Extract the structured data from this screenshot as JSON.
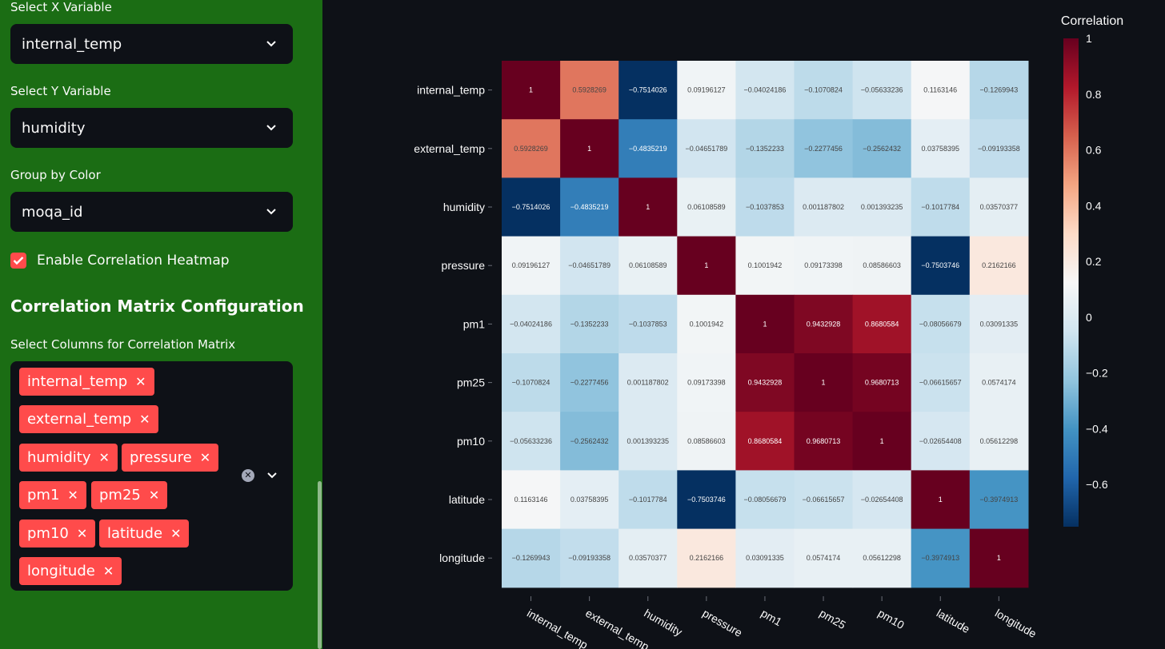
{
  "sidebar": {
    "x_label": "Select X Variable",
    "x_value": "internal_temp",
    "y_label": "Select Y Variable",
    "y_value": "humidity",
    "color_label": "Group by Color",
    "color_value": "moqa_id",
    "heatmap_checkbox_label": "Enable Correlation Heatmap",
    "heatmap_checked": true,
    "section_title": "Correlation Matrix Configuration",
    "columns_label": "Select Columns for Correlation Matrix",
    "selected_columns": [
      "internal_temp",
      "external_temp",
      "humidity",
      "pressure",
      "pm1",
      "pm25",
      "pm10",
      "latitude",
      "longitude"
    ],
    "accent_color": "#ff4b4b",
    "sidebar_bg": "#1b6d14"
  },
  "chart_data": {
    "type": "heatmap",
    "title": "",
    "colorbar_title": "Correlation",
    "colorscale": "RdBu (reversed)",
    "zrange": [
      -0.7514026,
      1
    ],
    "colorbar_ticks": [
      "1",
      "0.8",
      "0.6",
      "0.4",
      "0.2",
      "0",
      "−0.2",
      "−0.4",
      "−0.6"
    ],
    "colorbar_tick_values": [
      1,
      0.8,
      0.6,
      0.4,
      0.2,
      0,
      -0.2,
      -0.4,
      -0.6
    ],
    "x": [
      "internal_temp",
      "external_temp",
      "humidity",
      "pressure",
      "pm1",
      "pm25",
      "pm10",
      "latitude",
      "longitude"
    ],
    "y": [
      "internal_temp",
      "external_temp",
      "humidity",
      "pressure",
      "pm1",
      "pm25",
      "pm10",
      "latitude",
      "longitude"
    ],
    "z": [
      [
        1,
        0.5928269,
        -0.7514026,
        0.09196127,
        -0.04024186,
        -0.1070824,
        -0.05633236,
        0.1163146,
        -0.1269943
      ],
      [
        0.5928269,
        1,
        -0.4835219,
        -0.04651789,
        -0.1352233,
        -0.2277456,
        -0.2562432,
        0.03758395,
        -0.09193358
      ],
      [
        -0.7514026,
        -0.4835219,
        1,
        0.06108589,
        -0.1037853,
        0.001187802,
        0.001393235,
        -0.1017784,
        0.03570377
      ],
      [
        0.09196127,
        -0.04651789,
        0.06108589,
        1,
        0.1001942,
        0.09173398,
        0.08586603,
        -0.7503746,
        0.2162166
      ],
      [
        -0.04024186,
        -0.1352233,
        -0.1037853,
        0.1001942,
        1,
        0.9432928,
        0.8680584,
        -0.08056679,
        0.03091335
      ],
      [
        -0.1070824,
        -0.2277456,
        0.001187802,
        0.09173398,
        0.9432928,
        1,
        0.9680713,
        -0.06615657,
        0.0574174
      ],
      [
        -0.05633236,
        -0.2562432,
        0.001393235,
        0.08586603,
        0.8680584,
        0.9680713,
        1,
        -0.02654408,
        0.05612298
      ],
      [
        0.1163146,
        0.03758395,
        -0.1017784,
        -0.7503746,
        -0.08056679,
        -0.06615657,
        -0.02654408,
        1,
        -0.3974913
      ],
      [
        -0.1269943,
        -0.09193358,
        0.03570377,
        0.2162166,
        0.03091335,
        0.0574174,
        0.05612298,
        -0.3974913,
        1
      ]
    ],
    "z_text": [
      [
        "1",
        "0.5928269",
        "−0.7514026",
        "0.09196127",
        "−0.04024186",
        "−0.1070824",
        "−0.05633236",
        "0.1163146",
        "−0.1269943"
      ],
      [
        "0.5928269",
        "1",
        "−0.4835219",
        "−0.04651789",
        "−0.1352233",
        "−0.2277456",
        "−0.2562432",
        "0.03758395",
        "−0.09193358"
      ],
      [
        "−0.7514026",
        "−0.4835219",
        "1",
        "0.06108589",
        "−0.1037853",
        "0.001187802",
        "0.001393235",
        "−0.1017784",
        "0.03570377"
      ],
      [
        "0.09196127",
        "−0.04651789",
        "0.06108589",
        "1",
        "0.1001942",
        "0.09173398",
        "0.08586603",
        "−0.7503746",
        "0.2162166"
      ],
      [
        "−0.04024186",
        "−0.1352233",
        "−0.1037853",
        "0.1001942",
        "1",
        "0.9432928",
        "0.8680584",
        "−0.08056679",
        "0.03091335"
      ],
      [
        "−0.1070824",
        "−0.2277456",
        "0.001187802",
        "0.09173398",
        "0.9432928",
        "1",
        "0.9680713",
        "−0.06615657",
        "0.0574174"
      ],
      [
        "−0.05633236",
        "−0.2562432",
        "0.001393235",
        "0.08586603",
        "0.8680584",
        "0.9680713",
        "1",
        "−0.02654408",
        "0.05612298"
      ],
      [
        "0.1163146",
        "0.03758395",
        "−0.1017784",
        "−0.7503746",
        "−0.08056679",
        "−0.06615657",
        "−0.02654408",
        "1",
        "−0.3974913"
      ],
      [
        "−0.1269943",
        "−0.09193358",
        "0.03570377",
        "0.2162166",
        "0.03091335",
        "0.0574174",
        "0.05612298",
        "−0.3974913",
        "1"
      ]
    ]
  }
}
